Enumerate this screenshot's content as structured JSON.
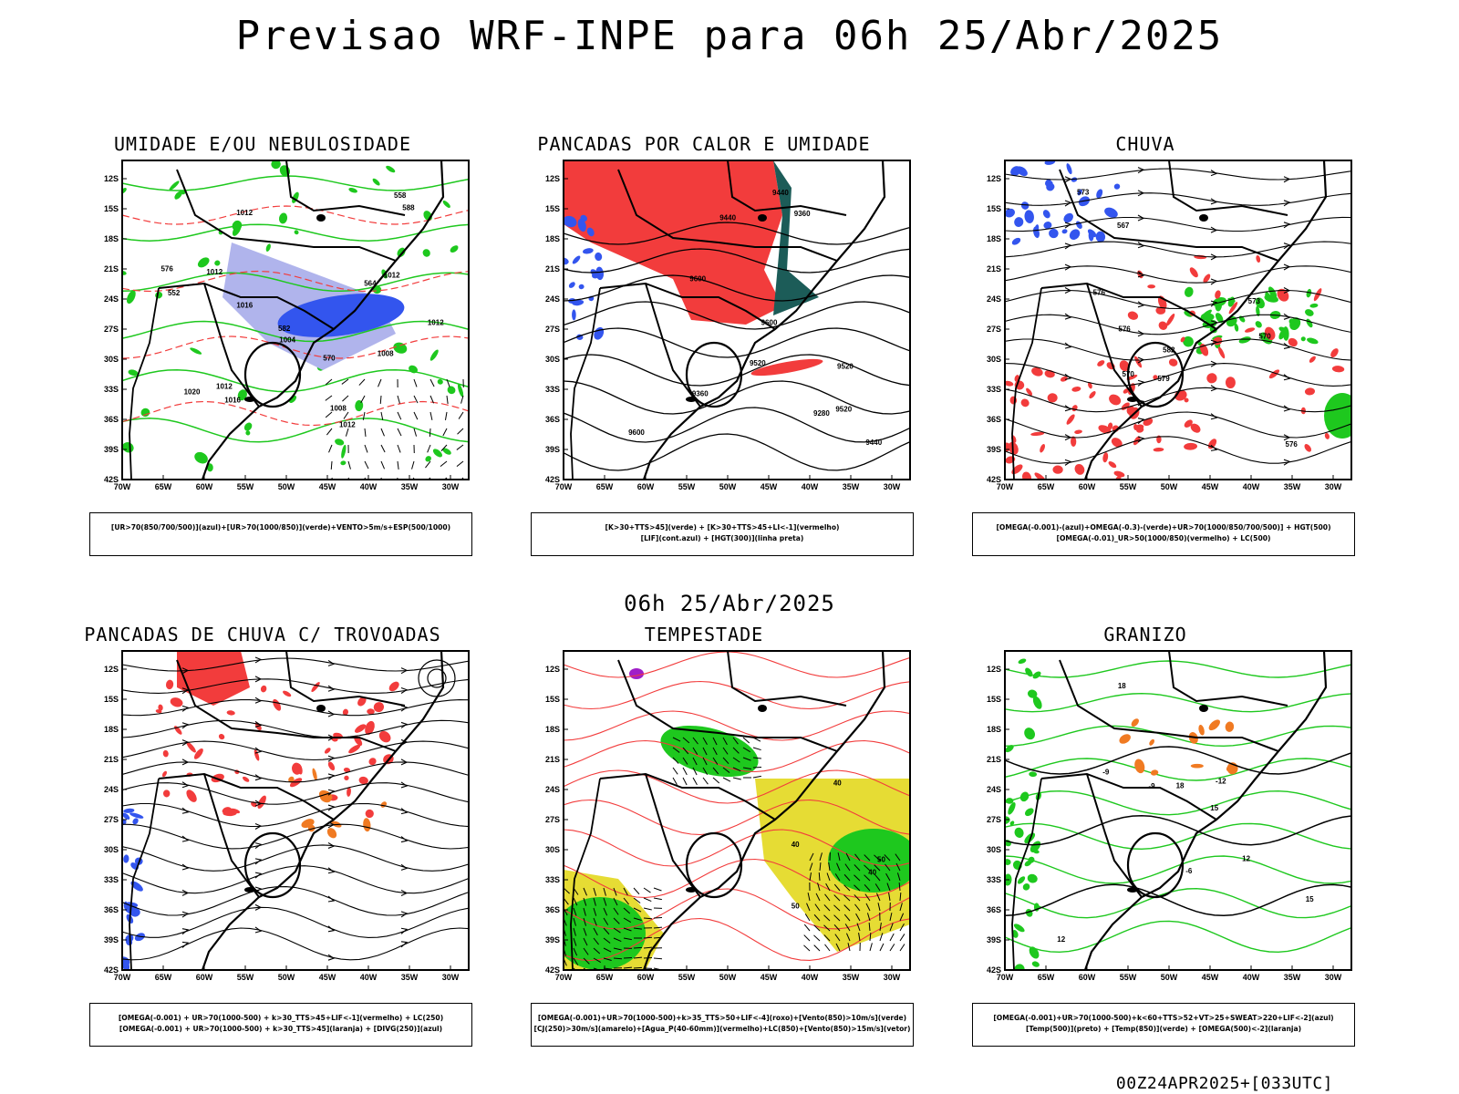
{
  "header": {
    "title": "Previsao WRF-INPE  para 06h 25/Abr/2025"
  },
  "mid_time": "06h 25/Abr/2025",
  "footer": "00Z24APR2025+[033UTC]",
  "axes": {
    "lat_labels": [
      "12S",
      "15S",
      "18S",
      "21S",
      "24S",
      "27S",
      "30S",
      "33S",
      "36S",
      "39S",
      "42S"
    ],
    "lon_labels": [
      "70W",
      "65W",
      "60W",
      "55W",
      "50W",
      "45W",
      "40W",
      "35W",
      "30W"
    ]
  },
  "colors": {
    "blue": "#3355ee",
    "lightblue": "#b0b4ec",
    "green": "#1ec81e",
    "red": "#f23c3c",
    "darkteal": "#1c5c58",
    "orange": "#f07a22",
    "yellow": "#e6dc34",
    "purple": "#a01ec8"
  },
  "panels": [
    {
      "title": "UMIDADE E/OU NEBULOSIDADE",
      "legend": [
        "[UR>70(850/700/500)](azul)+[UR>70(1000/850)](verde)+VENTO>5m/s+ESP(500/1000)"
      ],
      "labels": [
        "1012",
        "1012",
        "1012",
        "1012",
        "1012",
        "1008",
        "1012",
        "1016",
        "1004",
        "1016",
        "1020",
        "576",
        "582",
        "570",
        "564",
        "558",
        "552",
        "588",
        "1008"
      ]
    },
    {
      "title": "PANCADAS POR CALOR E UMIDADE",
      "legend": [
        "[K>30+TTS>45](verde) + [K>30+TTS>45+LI<-1](vermelho)",
        "[LIF](cont.azul) + [HGT(300)](linha preta)"
      ],
      "labels": [
        "9600",
        "9520",
        "9600",
        "9520",
        "9440",
        "9440",
        "9520",
        "9360",
        "9280",
        "9360",
        "9440",
        "9600"
      ]
    },
    {
      "title": "CHUVA",
      "legend": [
        "[OMEGA(-0.001)-(azul)+OMEGA(-0.3)-(verde)+UR>70(1000/850/700/500)] + HGT(500)",
        "[OMEGA(-0.01)_UR>50(1000/850)(vermelho) + LC(500)"
      ],
      "labels": [
        "582",
        "576",
        "573",
        "570",
        "576",
        "567",
        "579",
        "576",
        "570",
        "573"
      ]
    },
    {
      "title": "PANCADAS DE CHUVA C/ TROVOADAS",
      "legend": [
        "[OMEGA(-0.001) + UR>70(1000-500) + k>30_TTS>45+LIF<-1](vermelho) + LC(250)",
        "[OMEGA(-0.001) + UR>70(1000-500) + k>30_TTS>45](laranja) + [DIVG(250)](azul)"
      ],
      "labels": []
    },
    {
      "title": "TEMPESTADE",
      "legend": [
        "[OMEGA(-0.001)+UR>70(1000-500)+k>35_TTS>50+LIF<-4](roxo)+[Vento(850)>10m/s](verde)",
        "[CJ(250)>30m/s](amarelo)+[Agua_P(40-60mm)](vermelho)+LC(850)+[Vento(850)>15m/s](vetor)"
      ],
      "labels": [
        "40",
        "50",
        "40",
        "40",
        "50"
      ]
    },
    {
      "title": "GRANIZO",
      "legend": [
        "[OMEGA(-0.001)+UR>70(1000-500)+k<60+TTS>52+VT>25+SWEAT>220+LIF<-2](azul)",
        "[Temp(500)](preto) + [Temp(850)](verde) + [OMEGA(500)<-2](laranja)"
      ],
      "labels": [
        "12",
        "15",
        "18",
        "-9",
        "12",
        "-12",
        "15",
        "18",
        "-9",
        "-6"
      ]
    }
  ]
}
